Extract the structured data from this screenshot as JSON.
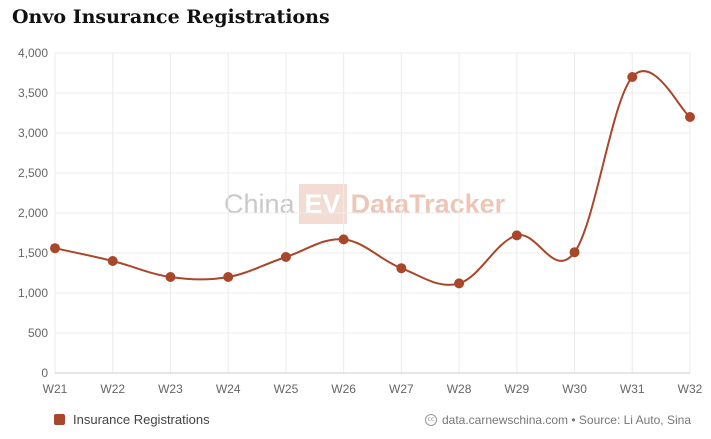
{
  "title": "Onvo Insurance Registrations",
  "colors": {
    "series": "#a9472b",
    "grid": "#ececec",
    "axis_text": "#666666"
  },
  "watermark": {
    "left": "China",
    "box": "EV",
    "right": "DataTracker"
  },
  "source": {
    "icon": "cc-icon",
    "text": "data.carnewschina.com • Source: Li Auto, Sina"
  },
  "chart_data": {
    "type": "line",
    "title": "Onvo Insurance Registrations",
    "categories": [
      "W21",
      "W22",
      "W23",
      "W24",
      "W25",
      "W26",
      "W27",
      "W28",
      "W29",
      "W30",
      "W31",
      "W32"
    ],
    "series": [
      {
        "name": "Insurance Registrations",
        "values": [
          1560,
          1400,
          1200,
          1200,
          1450,
          1670,
          1310,
          1120,
          1720,
          1510,
          3700,
          3200
        ]
      }
    ],
    "ylim": [
      0,
      4000
    ],
    "yticks": [
      0,
      500,
      1000,
      1500,
      2000,
      2500,
      3000,
      3500,
      4000
    ],
    "ytick_labels": [
      "0",
      "500",
      "1,000",
      "1,500",
      "2,000",
      "2,500",
      "3,000",
      "3,500",
      "4,000"
    ],
    "grid": true,
    "legend": "bottom-left",
    "smooth": true
  }
}
